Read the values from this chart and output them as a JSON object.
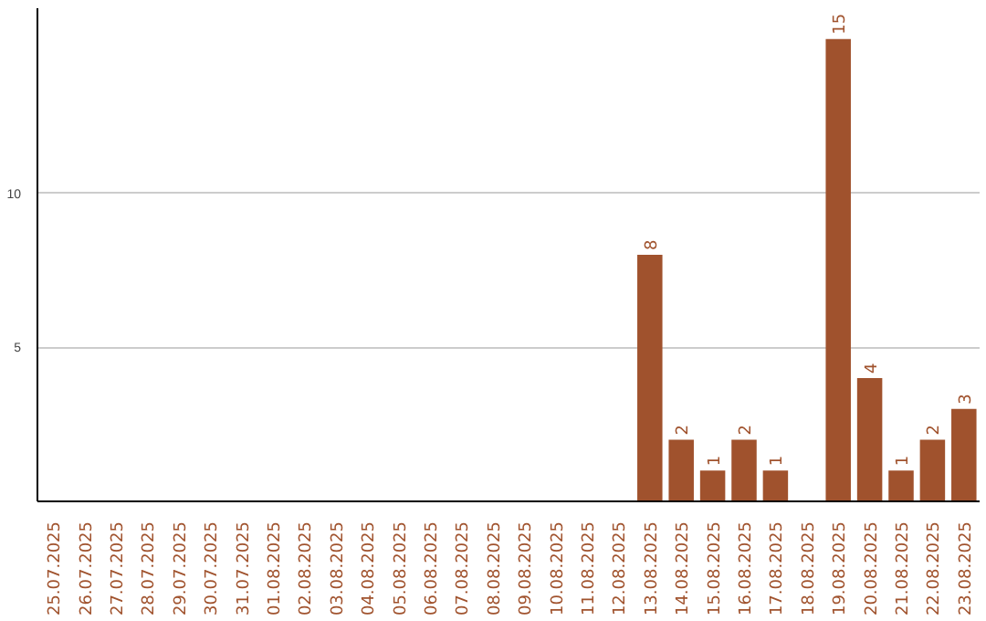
{
  "chart_data": {
    "type": "bar",
    "categories": [
      "25.07.2025",
      "26.07.2025",
      "27.07.2025",
      "28.07.2025",
      "29.07.2025",
      "30.07.2025",
      "31.07.2025",
      "01.08.2025",
      "02.08.2025",
      "03.08.2025",
      "04.08.2025",
      "05.08.2025",
      "06.08.2025",
      "07.08.2025",
      "08.08.2025",
      "09.08.2025",
      "10.08.2025",
      "11.08.2025",
      "12.08.2025",
      "13.08.2025",
      "14.08.2025",
      "15.08.2025",
      "16.08.2025",
      "17.08.2025",
      "18.08.2025",
      "19.08.2025",
      "20.08.2025",
      "21.08.2025",
      "22.08.2025",
      "23.08.2025"
    ],
    "values": [
      0,
      0,
      0,
      0,
      0,
      0,
      0,
      0,
      0,
      0,
      0,
      0,
      0,
      0,
      0,
      0,
      0,
      0,
      0,
      8,
      2,
      1,
      2,
      1,
      0,
      15,
      4,
      1,
      2,
      3
    ],
    "value_labels": [
      null,
      null,
      null,
      null,
      null,
      null,
      null,
      null,
      null,
      null,
      null,
      null,
      null,
      null,
      null,
      null,
      null,
      null,
      null,
      "8",
      "2",
      "1",
      "2",
      "1",
      null,
      "15",
      "4",
      "1",
      "2",
      "3"
    ],
    "color": "#a0522d",
    "ylim": [
      0,
      16
    ],
    "yticks": [
      5,
      10
    ],
    "grid": "y"
  }
}
